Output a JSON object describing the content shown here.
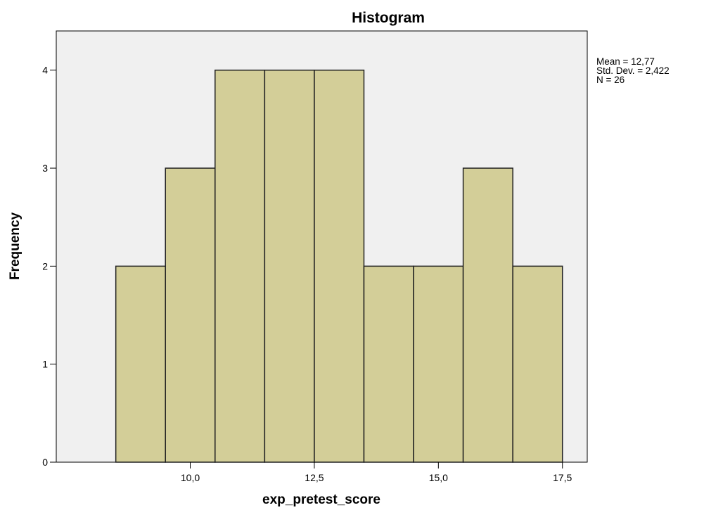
{
  "chart_data": {
    "type": "bar",
    "title": "Histogram",
    "xlabel": "exp_pretest_score",
    "ylabel": "Frequency",
    "bins": [
      {
        "start": 8.5,
        "end": 9.5,
        "count": 2
      },
      {
        "start": 9.5,
        "end": 10.5,
        "count": 3
      },
      {
        "start": 10.5,
        "end": 11.5,
        "count": 4
      },
      {
        "start": 11.5,
        "end": 12.5,
        "count": 4
      },
      {
        "start": 12.5,
        "end": 13.5,
        "count": 4
      },
      {
        "start": 13.5,
        "end": 14.5,
        "count": 2
      },
      {
        "start": 14.5,
        "end": 15.5,
        "count": 2
      },
      {
        "start": 15.5,
        "end": 16.5,
        "count": 3
      },
      {
        "start": 16.5,
        "end": 17.5,
        "count": 2
      }
    ],
    "xlim": [
      7.3,
      18.0
    ],
    "ylim": [
      0,
      4.4
    ],
    "x_ticks": [
      {
        "value": 10.0,
        "label": "10,0"
      },
      {
        "value": 12.5,
        "label": "12,5"
      },
      {
        "value": 15.0,
        "label": "15,0"
      },
      {
        "value": 17.5,
        "label": "17,5"
      }
    ],
    "y_ticks": [
      {
        "value": 0,
        "label": "0"
      },
      {
        "value": 1,
        "label": "1"
      },
      {
        "value": 2,
        "label": "2"
      },
      {
        "value": 3,
        "label": "3"
      },
      {
        "value": 4,
        "label": "4"
      }
    ],
    "stats": [
      "Mean = 12,77",
      "Std. Dev. = 2,422",
      "N = 26"
    ],
    "grid": false,
    "colors": {
      "bar": "#d3ce98",
      "plot_background": "#f0f0f0",
      "bar_edge": "#222222"
    }
  }
}
